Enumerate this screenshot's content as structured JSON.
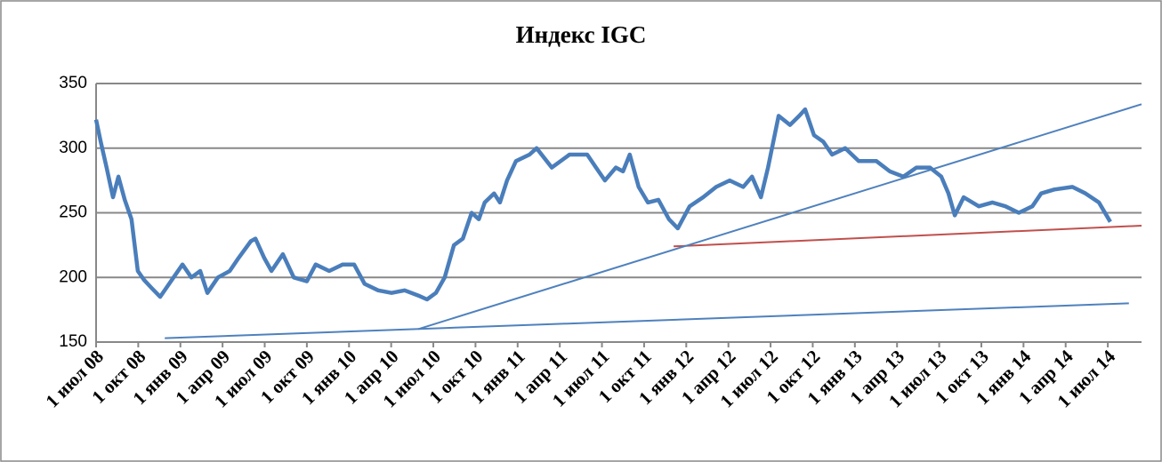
{
  "chart_data": {
    "type": "line",
    "title": "Индекс IGC",
    "xlim": [
      0,
      24.8
    ],
    "xticks": [
      {
        "value": 0,
        "label": "1 июл 08"
      },
      {
        "value": 1,
        "label": "1 окт 08"
      },
      {
        "value": 2,
        "label": "1 янв 09"
      },
      {
        "value": 3,
        "label": "1 апр 09"
      },
      {
        "value": 4,
        "label": "1 июл 09"
      },
      {
        "value": 5,
        "label": "1 окт 09"
      },
      {
        "value": 6,
        "label": "1 янв 10"
      },
      {
        "value": 7,
        "label": "1 апр 10"
      },
      {
        "value": 8,
        "label": "1 июл 10"
      },
      {
        "value": 9,
        "label": "1 окт 10"
      },
      {
        "value": 10,
        "label": "1 янв 11"
      },
      {
        "value": 11,
        "label": "1 апр 11"
      },
      {
        "value": 12,
        "label": "1 июл 11"
      },
      {
        "value": 13,
        "label": "1 окт 11"
      },
      {
        "value": 14,
        "label": "1 янв 12"
      },
      {
        "value": 15,
        "label": "1 апр 12"
      },
      {
        "value": 16,
        "label": "1 июл 12"
      },
      {
        "value": 17,
        "label": "1 окт 12"
      },
      {
        "value": 18,
        "label": "1 янв 13"
      },
      {
        "value": 19,
        "label": "1 апр 13"
      },
      {
        "value": 20,
        "label": "1 июл 13"
      },
      {
        "value": 21,
        "label": "1 окт 13"
      },
      {
        "value": 22,
        "label": "1 янв 14"
      },
      {
        "value": 23,
        "label": "1 апр 14"
      },
      {
        "value": 24,
        "label": "1 июл 14"
      }
    ],
    "ylim": [
      150,
      350
    ],
    "yticks": [
      150,
      200,
      250,
      300,
      350
    ],
    "grid": true,
    "series": [
      {
        "color": "#4a7ebb",
        "x": [
          0,
          0.11,
          0.25,
          0.4,
          0.53,
          0.68,
          0.84,
          0.99,
          1.14,
          1.31,
          1.52,
          2.05,
          2.26,
          2.47,
          2.64,
          2.89,
          3.17,
          3.38,
          3.67,
          3.78,
          3.99,
          4.16,
          4.43,
          4.69,
          5.0,
          5.21,
          5.53,
          5.85,
          6.12,
          6.37,
          6.69,
          7.01,
          7.32,
          7.64,
          7.85,
          8.06,
          8.27,
          8.49,
          8.7,
          8.91,
          9.08,
          9.22,
          9.44,
          9.58,
          9.75,
          9.96,
          10.28,
          10.45,
          10.81,
          11.23,
          11.65,
          11.86,
          12.07,
          12.33,
          12.5,
          12.66,
          12.87,
          13.09,
          13.34,
          13.59,
          13.8,
          14.08,
          14.4,
          14.71,
          15.03,
          15.35,
          15.56,
          15.77,
          15.94,
          16.19,
          16.46,
          16.68,
          16.82,
          17.03,
          17.25,
          17.46,
          17.77,
          18.09,
          18.51,
          18.83,
          19.15,
          19.46,
          19.78,
          20.05,
          20.22,
          20.37,
          20.58,
          20.94,
          21.26,
          21.57,
          21.89,
          22.21,
          22.42,
          22.73,
          23.16,
          23.47,
          23.79,
          24.06
        ],
        "values": [
          322,
          305,
          285,
          262,
          278,
          260,
          245,
          205,
          198,
          192,
          185,
          210,
          200,
          205,
          188,
          200,
          205,
          215,
          228,
          230,
          215,
          205,
          218,
          200,
          197,
          210,
          205,
          210,
          210,
          195,
          190,
          188,
          190,
          186,
          183,
          188,
          200,
          225,
          230,
          250,
          245,
          258,
          265,
          258,
          275,
          290,
          295,
          300,
          285,
          295,
          295,
          285,
          275,
          285,
          282,
          295,
          270,
          258,
          260,
          245,
          238,
          255,
          262,
          270,
          275,
          270,
          278,
          262,
          285,
          325,
          318,
          325,
          330,
          310,
          305,
          295,
          300,
          290,
          290,
          282,
          278,
          285,
          285,
          278,
          265,
          248,
          262,
          255,
          258,
          255,
          250,
          255,
          265,
          268,
          270,
          265,
          258,
          243
        ]
      },
      {
        "color": "#4f81bd",
        "x": [
          1.63,
          24.5
        ],
        "values": [
          153,
          180
        ]
      },
      {
        "color": "#4f81bd",
        "x": [
          7.64,
          24.8
        ],
        "values": [
          160,
          334
        ]
      },
      {
        "color": "#c0504d",
        "x": [
          13.7,
          24.8
        ],
        "values": [
          224,
          240
        ]
      }
    ]
  }
}
